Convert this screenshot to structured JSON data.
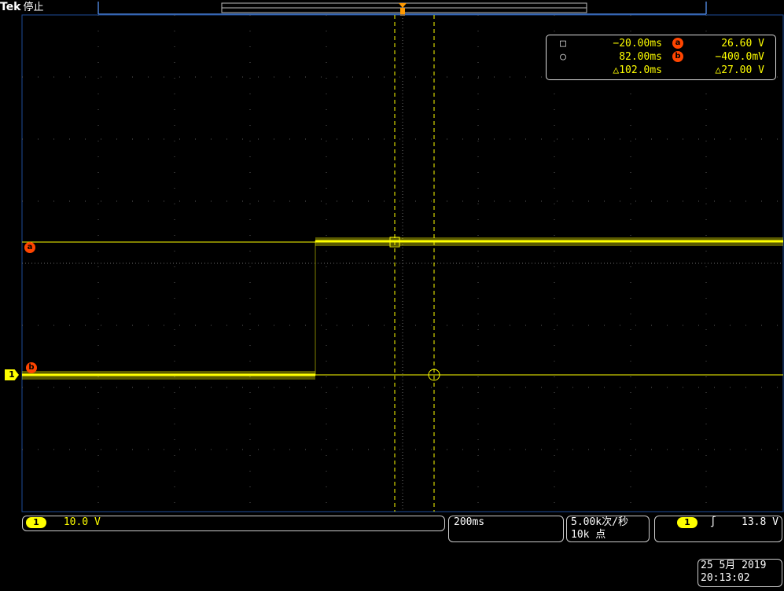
{
  "header": {
    "brand": "Tek",
    "status": "停止"
  },
  "readout": {
    "row1": {
      "time": "−20.00ms",
      "cursor": "a",
      "value": "26.60 V"
    },
    "row2": {
      "time": "82.00ms",
      "cursor": "b",
      "value": "−400.0mV"
    },
    "row3": {
      "delta_time": "△102.0ms",
      "delta_value": "△27.00 V"
    }
  },
  "markers": {
    "cursor_a": "a",
    "cursor_b": "b",
    "channel": "1"
  },
  "status": {
    "channel_badge": "1",
    "vertical_scale": "10.0 V",
    "timebase": "200ms",
    "sample_rate": "5.00k次/秒",
    "record_length": "10k 点",
    "trigger_channel": "1",
    "trigger_slope_icon": "rising-edge-icon",
    "trigger_level": "13.8 V",
    "date": "25 5月 2019",
    "time": "20:13:02"
  },
  "colors": {
    "trace": "#ffff00",
    "cursor_marker": "#ff4500",
    "grid": "#5a5a5a"
  }
}
